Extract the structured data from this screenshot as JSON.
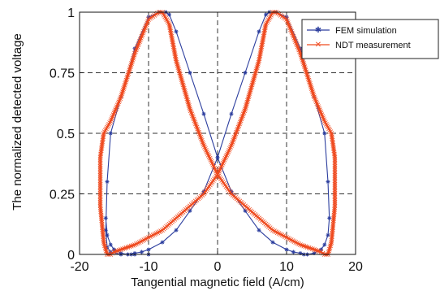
{
  "chart_data": {
    "type": "line",
    "xlabel": "Tangential magnetic field (A/cm)",
    "ylabel": "The normalized detected voltage",
    "xlim": [
      -20,
      20
    ],
    "ylim": [
      0,
      1
    ],
    "xticks": [
      -20,
      -10,
      0,
      10,
      20
    ],
    "xtick_labels": [
      "-20",
      "-10",
      "0",
      "10",
      "20"
    ],
    "yticks": [
      0,
      0.25,
      0.5,
      0.75,
      1
    ],
    "ytick_labels": [
      "0",
      "0.25",
      "0.5",
      "0.75",
      "1"
    ],
    "grid": "dashed",
    "legend_position": "top-right",
    "series": [
      {
        "name": "FEM simulation",
        "color": "#2c3e9e",
        "marker": "star",
        "x": [
          -10,
          -12,
          -14,
          -15.5,
          -16,
          -16.2,
          -16,
          -15.5,
          -14,
          -12,
          -10,
          -8.5,
          -7.5,
          -7,
          -6,
          -4,
          -2,
          0,
          2,
          4,
          6,
          8,
          10,
          11,
          12,
          12.5,
          13,
          14,
          15,
          15.5,
          16,
          16.2,
          16,
          15.5,
          14,
          12,
          10,
          8.5,
          7.5,
          7,
          6,
          4,
          2,
          0,
          -2,
          -4,
          -6,
          -8,
          -10,
          -11,
          -12,
          -12.5,
          -13,
          -14,
          -15,
          -15.5,
          -16,
          -16.2
        ],
        "y": [
          0,
          0,
          0,
          0.01,
          0.03,
          0.1,
          0.3,
          0.5,
          0.65,
          0.85,
          0.98,
          1,
          1,
          0.99,
          0.92,
          0.75,
          0.58,
          0.4,
          0.26,
          0.18,
          0.1,
          0.05,
          0.02,
          0.01,
          0.005,
          0,
          0,
          0.005,
          0.02,
          0.04,
          0.08,
          0.15,
          0.3,
          0.5,
          0.65,
          0.85,
          0.98,
          1,
          1,
          0.99,
          0.92,
          0.75,
          0.58,
          0.4,
          0.26,
          0.18,
          0.1,
          0.05,
          0.02,
          0.01,
          0.005,
          0,
          0,
          0.005,
          0.02,
          0.04,
          0.08,
          0.15
        ]
      },
      {
        "name": "NDT measurement",
        "color": "#ef4a1f",
        "marker": "cross",
        "x": [
          -16,
          -16.5,
          -17,
          -17,
          -16.5,
          -15.5,
          -14,
          -12,
          -10,
          -8.5,
          -8,
          -7,
          -6,
          -4,
          -2,
          0,
          2,
          4,
          6,
          8,
          10,
          12,
          14,
          15,
          15.5,
          16,
          16.5,
          17,
          17,
          16.5,
          15.5,
          14,
          12,
          10,
          8.5,
          8,
          7,
          6,
          4,
          2,
          0,
          -2,
          -4,
          -6,
          -8,
          -10,
          -12,
          -14,
          -15,
          -15.5,
          -16
        ],
        "y": [
          0,
          0.05,
          0.2,
          0.4,
          0.5,
          0.55,
          0.65,
          0.83,
          0.97,
          1,
          1,
          0.95,
          0.8,
          0.6,
          0.45,
          0.33,
          0.25,
          0.2,
          0.15,
          0.1,
          0.07,
          0.04,
          0.02,
          0.01,
          0,
          0,
          0.05,
          0.2,
          0.4,
          0.5,
          0.55,
          0.65,
          0.83,
          0.97,
          1,
          1,
          0.95,
          0.8,
          0.6,
          0.45,
          0.33,
          0.25,
          0.2,
          0.15,
          0.1,
          0.07,
          0.04,
          0.02,
          0.01,
          0,
          0
        ]
      }
    ]
  },
  "legend": {
    "items": [
      {
        "label": "FEM simulation",
        "color": "#2c3e9e",
        "marker": "star"
      },
      {
        "label": "NDT measurement",
        "color": "#ef4a1f",
        "marker": "cross"
      }
    ]
  }
}
